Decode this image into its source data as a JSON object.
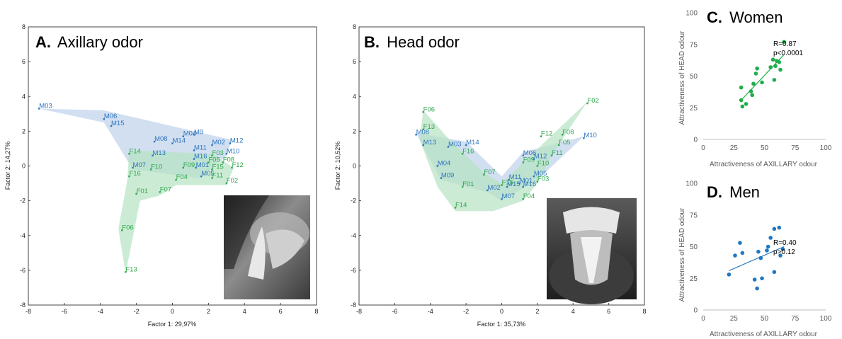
{
  "colors": {
    "male": "#2e75c0",
    "female": "#2fa84f",
    "male_hull": "#c9d9ee",
    "female_hull": "#b6e3c2",
    "women_dot": "#1fae4a",
    "men_dot": "#1f78c1"
  },
  "chart_data": [
    {
      "id": "A",
      "type": "scatter",
      "panel_letter": "A.",
      "title": "Axillary odor",
      "xlabel": "Factor 1: 29,97%",
      "ylabel": "Factor 2: 14,27%",
      "xlim": [
        -8,
        8
      ],
      "ylim": [
        -8,
        8
      ],
      "xticks": [
        "-8",
        "-6",
        "-4",
        "-2",
        "0",
        "2",
        "4",
        "6",
        "8"
      ],
      "yticks": [
        "8",
        "6",
        "4",
        "2",
        "0",
        "-2",
        "-4",
        "-6",
        "-8"
      ],
      "photo": "axilla-pad-photo",
      "points": [
        {
          "label": "M03",
          "group": "M",
          "x": -7.4,
          "y": 3.3
        },
        {
          "label": "M06",
          "group": "M",
          "x": -3.8,
          "y": 2.7
        },
        {
          "label": "M15",
          "group": "M",
          "x": -3.4,
          "y": 2.3
        },
        {
          "label": "M08",
          "group": "M",
          "x": -1.0,
          "y": 1.4
        },
        {
          "label": "M04",
          "group": "M",
          "x": 0.6,
          "y": 1.7
        },
        {
          "label": "M9",
          "group": "M",
          "x": 1.2,
          "y": 1.8
        },
        {
          "label": "M14",
          "group": "M",
          "x": 0.0,
          "y": 1.3
        },
        {
          "label": "M02",
          "group": "M",
          "x": 2.2,
          "y": 1.2
        },
        {
          "label": "M12",
          "group": "M",
          "x": 3.2,
          "y": 1.3
        },
        {
          "label": "M11",
          "group": "M",
          "x": 1.2,
          "y": 0.9
        },
        {
          "label": "M13",
          "group": "M",
          "x": -1.1,
          "y": 0.6
        },
        {
          "label": "M10",
          "group": "M",
          "x": 3.0,
          "y": 0.7
        },
        {
          "label": "M16",
          "group": "M",
          "x": 1.2,
          "y": 0.4
        },
        {
          "label": "M07",
          "group": "M",
          "x": -2.2,
          "y": -0.1
        },
        {
          "label": "M01",
          "group": "M",
          "x": 1.3,
          "y": -0.1
        },
        {
          "label": "M05",
          "group": "M",
          "x": 1.6,
          "y": -0.6
        },
        {
          "label": "F14",
          "group": "F",
          "x": -2.4,
          "y": 0.7
        },
        {
          "label": "F03",
          "group": "F",
          "x": 2.2,
          "y": 0.6
        },
        {
          "label": "F08",
          "group": "F",
          "x": 2.8,
          "y": 0.2
        },
        {
          "label": "F05",
          "group": "F",
          "x": 2.0,
          "y": 0.2
        },
        {
          "label": "F10",
          "group": "F",
          "x": -1.2,
          "y": -0.2
        },
        {
          "label": "F09",
          "group": "F",
          "x": 0.6,
          "y": -0.1
        },
        {
          "label": "F15",
          "group": "F",
          "x": 2.2,
          "y": -0.2
        },
        {
          "label": "F12",
          "group": "F",
          "x": 3.3,
          "y": -0.1
        },
        {
          "label": "F16",
          "group": "F",
          "x": -2.4,
          "y": -0.6
        },
        {
          "label": "F04",
          "group": "F",
          "x": 0.2,
          "y": -0.8
        },
        {
          "label": "F11",
          "group": "F",
          "x": 2.2,
          "y": -0.7
        },
        {
          "label": "F02",
          "group": "F",
          "x": 3.0,
          "y": -1.0
        },
        {
          "label": "F07",
          "group": "F",
          "x": -0.7,
          "y": -1.5
        },
        {
          "label": "F01",
          "group": "F",
          "x": -2.0,
          "y": -1.6
        },
        {
          "label": "F06",
          "group": "F",
          "x": -2.8,
          "y": -3.7
        },
        {
          "label": "F13",
          "group": "F",
          "x": -2.6,
          "y": -6.1
        }
      ],
      "male_hull": [
        [
          -7.4,
          3.3
        ],
        [
          -3.8,
          3.2
        ],
        [
          1.2,
          2.0
        ],
        [
          3.3,
          1.5
        ],
        [
          3.0,
          0.6
        ],
        [
          1.5,
          -0.7
        ],
        [
          -2.2,
          -0.2
        ],
        [
          -3.8,
          2.5
        ]
      ],
      "female_hull": [
        [
          -2.4,
          0.9
        ],
        [
          2.2,
          0.7
        ],
        [
          3.4,
          -0.1
        ],
        [
          3.0,
          -1.1
        ],
        [
          0.2,
          -1.1
        ],
        [
          -0.7,
          -1.7
        ],
        [
          -1.8,
          -2.0
        ],
        [
          -2.6,
          -6.2
        ],
        [
          -3.0,
          -3.6
        ],
        [
          -2.5,
          -0.8
        ]
      ]
    },
    {
      "id": "B",
      "type": "scatter",
      "panel_letter": "B.",
      "title": "Head odor",
      "xlabel": "Factor 1: 35,73%",
      "ylabel": "Factor 2: 10,52%",
      "xlim": [
        -8,
        8
      ],
      "ylim": [
        -8,
        8
      ],
      "xticks": [
        "-8",
        "-6",
        "-4",
        "-2",
        "0",
        "2",
        "4",
        "6",
        "8"
      ],
      "yticks": [
        "8",
        "6",
        "4",
        "2",
        "0",
        "-2",
        "-4",
        "-6",
        "-8"
      ],
      "photo": "head-pad-photo",
      "points": [
        {
          "label": "F06",
          "group": "F",
          "x": -4.4,
          "y": 3.1
        },
        {
          "label": "F13",
          "group": "F",
          "x": -4.4,
          "y": 2.1
        },
        {
          "label": "M08",
          "group": "M",
          "x": -4.8,
          "y": 1.8
        },
        {
          "label": "M13",
          "group": "M",
          "x": -4.4,
          "y": 1.2
        },
        {
          "label": "M03",
          "group": "M",
          "x": -3.0,
          "y": 1.1
        },
        {
          "label": "M14",
          "group": "M",
          "x": -2.0,
          "y": 1.2
        },
        {
          "label": "F16",
          "group": "F",
          "x": -2.2,
          "y": 0.7
        },
        {
          "label": "M04",
          "group": "M",
          "x": -3.6,
          "y": 0.0
        },
        {
          "label": "M09",
          "group": "M",
          "x": -3.4,
          "y": -0.7
        },
        {
          "label": "F07",
          "group": "F",
          "x": -1.0,
          "y": -0.5
        },
        {
          "label": "F01",
          "group": "F",
          "x": -2.2,
          "y": -1.2
        },
        {
          "label": "M02",
          "group": "M",
          "x": -0.8,
          "y": -1.4
        },
        {
          "label": "F15",
          "group": "F",
          "x": 0.0,
          "y": -1.1
        },
        {
          "label": "M11",
          "group": "M",
          "x": 0.4,
          "y": -0.8
        },
        {
          "label": "M15",
          "group": "M",
          "x": 0.3,
          "y": -1.2
        },
        {
          "label": "M01",
          "group": "M",
          "x": 1.0,
          "y": -1.0
        },
        {
          "label": "M16",
          "group": "M",
          "x": 1.2,
          "y": -1.2
        },
        {
          "label": "M07",
          "group": "M",
          "x": 0.0,
          "y": -1.9
        },
        {
          "label": "F04",
          "group": "F",
          "x": 1.2,
          "y": -1.9
        },
        {
          "label": "F14",
          "group": "F",
          "x": -2.6,
          "y": -2.4
        },
        {
          "label": "M05",
          "group": "M",
          "x": 1.8,
          "y": -0.6
        },
        {
          "label": "F03",
          "group": "F",
          "x": 2.0,
          "y": -0.9
        },
        {
          "label": "F10",
          "group": "F",
          "x": 2.0,
          "y": 0.0
        },
        {
          "label": "F09",
          "group": "F",
          "x": 1.2,
          "y": 0.2
        },
        {
          "label": "M06",
          "group": "M",
          "x": 1.2,
          "y": 0.6
        },
        {
          "label": "M12",
          "group": "M",
          "x": 1.8,
          "y": 0.4
        },
        {
          "label": "F11",
          "group": "F",
          "x": 2.8,
          "y": 0.6
        },
        {
          "label": "F05",
          "group": "F",
          "x": 3.2,
          "y": 1.2
        },
        {
          "label": "F12",
          "group": "F",
          "x": 2.2,
          "y": 1.7
        },
        {
          "label": "F08",
          "group": "F",
          "x": 3.4,
          "y": 1.8
        },
        {
          "label": "M10",
          "group": "M",
          "x": 4.6,
          "y": 1.6
        },
        {
          "label": "F02",
          "group": "F",
          "x": 4.8,
          "y": 3.6
        }
      ],
      "male_hull": [
        [
          -4.8,
          1.9
        ],
        [
          -2.0,
          1.4
        ],
        [
          0.0,
          -0.6
        ],
        [
          1.2,
          0.8
        ],
        [
          4.6,
          1.7
        ],
        [
          2.0,
          -0.8
        ],
        [
          0.0,
          -2.0
        ],
        [
          -0.8,
          -1.5
        ],
        [
          -3.4,
          -0.8
        ],
        [
          -4.4,
          1.1
        ]
      ],
      "female_hull": [
        [
          -4.4,
          3.2
        ],
        [
          -3.0,
          1.6
        ],
        [
          -2.2,
          0.8
        ],
        [
          -1.0,
          -0.4
        ],
        [
          0.0,
          -1.0
        ],
        [
          1.2,
          0.2
        ],
        [
          4.8,
          3.7
        ],
        [
          2.8,
          0.6
        ],
        [
          2.0,
          -1.0
        ],
        [
          1.2,
          -2.0
        ],
        [
          -0.5,
          -2.6
        ],
        [
          -2.6,
          -2.6
        ],
        [
          -3.6,
          -1.2
        ],
        [
          -4.6,
          1.5
        ]
      ]
    },
    {
      "id": "C",
      "type": "scatter",
      "panel_letter": "C.",
      "title": "Women",
      "xlabel": "Attractiveness of AXILLARY odour",
      "ylabel": "Attractiveness of HEAD odour",
      "xlim": [
        0,
        100
      ],
      "ylim": [
        0,
        100
      ],
      "xticks": [
        "0",
        "25",
        "50",
        "75",
        "100"
      ],
      "yticks": [
        "0",
        "25",
        "50",
        "75",
        "100"
      ],
      "stats": [
        "R=0.87",
        "p<0.0001"
      ],
      "fit": {
        "x": [
          31,
          66
        ],
        "y": [
          31,
          67
        ]
      },
      "points": [
        [
          31,
          31
        ],
        [
          32,
          26
        ],
        [
          31,
          41
        ],
        [
          35,
          28
        ],
        [
          39,
          38
        ],
        [
          40,
          35
        ],
        [
          41,
          44
        ],
        [
          43,
          52
        ],
        [
          44,
          56
        ],
        [
          48,
          45
        ],
        [
          55,
          57
        ],
        [
          57,
          63
        ],
        [
          58,
          47
        ],
        [
          59,
          58
        ],
        [
          60,
          62
        ],
        [
          62,
          61
        ],
        [
          63,
          55
        ],
        [
          66,
          77
        ]
      ]
    },
    {
      "id": "D",
      "type": "scatter",
      "panel_letter": "D.",
      "title": "Men",
      "xlabel": "Attractiveness of AXILLARY odour",
      "ylabel": "Attractiveness of HEAD odour",
      "xlim": [
        0,
        100
      ],
      "ylim": [
        0,
        100
      ],
      "xticks": [
        "0",
        "25",
        "50",
        "75",
        "100"
      ],
      "yticks": [
        "0",
        "25",
        "50",
        "75",
        "100"
      ],
      "stats": [
        "R=0.40",
        "p>0.12"
      ],
      "fit": {
        "x": [
          21,
          66
        ],
        "y": [
          31,
          50
        ]
      },
      "points": [
        [
          21,
          28
        ],
        [
          26,
          43
        ],
        [
          30,
          53
        ],
        [
          32,
          45
        ],
        [
          42,
          24
        ],
        [
          44,
          17
        ],
        [
          45,
          46
        ],
        [
          47,
          41
        ],
        [
          48,
          25
        ],
        [
          52,
          47
        ],
        [
          53,
          50
        ],
        [
          55,
          57
        ],
        [
          58,
          30
        ],
        [
          58,
          64
        ],
        [
          62,
          65
        ],
        [
          65,
          48
        ],
        [
          63,
          43
        ]
      ]
    }
  ]
}
